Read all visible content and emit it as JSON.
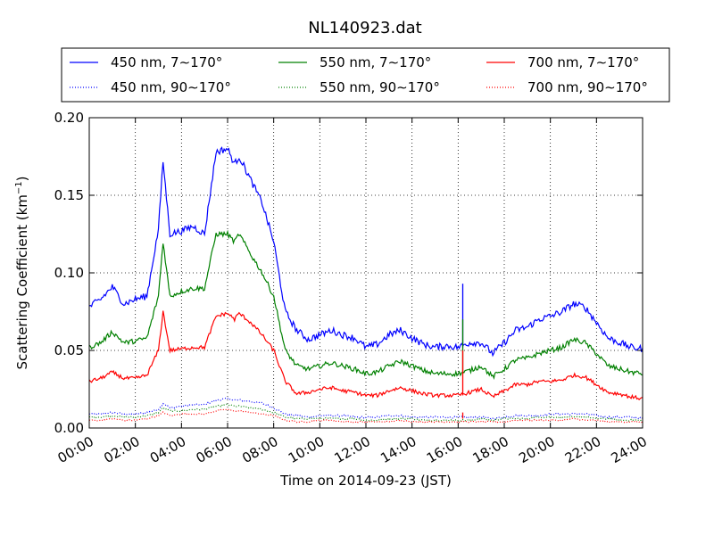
{
  "chart_data": {
    "type": "line",
    "title": "NL140923.dat",
    "xlabel": "Time on 2014-09-23 (JST)",
    "ylabel": "Scattering Coefficient (km",
    "ylabel_sup": "−1",
    "ylabel_end": ")",
    "xlim_hours": [
      0,
      24
    ],
    "ylim": [
      0,
      0.2
    ],
    "x_ticks": [
      "00:00",
      "02:00",
      "04:00",
      "06:00",
      "08:00",
      "10:00",
      "12:00",
      "14:00",
      "16:00",
      "18:00",
      "20:00",
      "22:00",
      "24:00"
    ],
    "y_ticks": [
      "0.00",
      "0.05",
      "0.10",
      "0.15",
      "0.20"
    ],
    "grid": true,
    "legend_placement": "top",
    "x_hours": [
      0,
      0.5,
      1,
      1.5,
      2,
      2.5,
      3,
      3.2,
      3.5,
      4,
      4.5,
      5,
      5.5,
      6,
      6.3,
      6.5,
      7,
      7.5,
      8,
      8.5,
      9,
      9.5,
      10,
      10.5,
      11,
      11.5,
      12,
      12.5,
      13,
      13.5,
      14,
      14.5,
      15,
      15.5,
      16,
      16.5,
      17,
      17.5,
      18,
      18.5,
      19,
      19.5,
      20,
      20.5,
      21,
      21.5,
      22,
      22.5,
      23,
      23.5,
      24
    ],
    "series": [
      {
        "name": "450 nm, 7∼170°",
        "color": "#0000ff",
        "style": "solid",
        "values": [
          0.078,
          0.083,
          0.091,
          0.08,
          0.083,
          0.085,
          0.128,
          0.172,
          0.125,
          0.127,
          0.13,
          0.125,
          0.178,
          0.18,
          0.17,
          0.175,
          0.16,
          0.145,
          0.12,
          0.075,
          0.063,
          0.057,
          0.06,
          0.063,
          0.06,
          0.058,
          0.052,
          0.054,
          0.06,
          0.063,
          0.058,
          0.054,
          0.052,
          0.053,
          0.052,
          0.055,
          0.055,
          0.048,
          0.055,
          0.063,
          0.065,
          0.07,
          0.072,
          0.075,
          0.08,
          0.078,
          0.068,
          0.058,
          0.055,
          0.052,
          0.051
        ]
      },
      {
        "name": "550 nm, 7∼170°",
        "color": "#008000",
        "style": "solid",
        "values": [
          0.052,
          0.055,
          0.062,
          0.055,
          0.056,
          0.058,
          0.085,
          0.12,
          0.085,
          0.088,
          0.09,
          0.09,
          0.125,
          0.125,
          0.12,
          0.125,
          0.112,
          0.1,
          0.085,
          0.05,
          0.04,
          0.038,
          0.04,
          0.042,
          0.04,
          0.038,
          0.035,
          0.036,
          0.04,
          0.043,
          0.04,
          0.037,
          0.035,
          0.035,
          0.035,
          0.037,
          0.04,
          0.033,
          0.038,
          0.044,
          0.045,
          0.048,
          0.05,
          0.052,
          0.057,
          0.055,
          0.048,
          0.04,
          0.038,
          0.036,
          0.035
        ]
      },
      {
        "name": "700 nm, 7∼170°",
        "color": "#ff0000",
        "style": "solid",
        "values": [
          0.03,
          0.032,
          0.036,
          0.032,
          0.032,
          0.034,
          0.05,
          0.075,
          0.05,
          0.051,
          0.052,
          0.052,
          0.072,
          0.074,
          0.07,
          0.074,
          0.068,
          0.06,
          0.05,
          0.03,
          0.022,
          0.023,
          0.025,
          0.026,
          0.024,
          0.023,
          0.021,
          0.021,
          0.024,
          0.026,
          0.024,
          0.022,
          0.021,
          0.021,
          0.021,
          0.023,
          0.025,
          0.02,
          0.024,
          0.028,
          0.028,
          0.03,
          0.03,
          0.031,
          0.034,
          0.033,
          0.028,
          0.023,
          0.022,
          0.02,
          0.019
        ]
      },
      {
        "name": "450 nm, 90∼170°",
        "color": "#0000ff",
        "style": "dotted",
        "values": [
          0.009,
          0.009,
          0.01,
          0.009,
          0.009,
          0.01,
          0.012,
          0.016,
          0.013,
          0.014,
          0.015,
          0.015,
          0.018,
          0.019,
          0.018,
          0.018,
          0.017,
          0.016,
          0.013,
          0.009,
          0.008,
          0.007,
          0.008,
          0.008,
          0.008,
          0.007,
          0.007,
          0.007,
          0.008,
          0.008,
          0.007,
          0.007,
          0.007,
          0.007,
          0.007,
          0.007,
          0.007,
          0.006,
          0.007,
          0.008,
          0.008,
          0.008,
          0.009,
          0.009,
          0.009,
          0.009,
          0.008,
          0.007,
          0.007,
          0.007,
          0.006
        ]
      },
      {
        "name": "550 nm, 90∼170°",
        "color": "#008000",
        "style": "dotted",
        "values": [
          0.007,
          0.007,
          0.008,
          0.007,
          0.007,
          0.008,
          0.01,
          0.013,
          0.011,
          0.011,
          0.012,
          0.012,
          0.014,
          0.015,
          0.014,
          0.014,
          0.013,
          0.012,
          0.01,
          0.007,
          0.006,
          0.006,
          0.006,
          0.006,
          0.006,
          0.006,
          0.005,
          0.005,
          0.006,
          0.006,
          0.006,
          0.005,
          0.005,
          0.005,
          0.005,
          0.005,
          0.006,
          0.005,
          0.006,
          0.006,
          0.006,
          0.007,
          0.007,
          0.007,
          0.007,
          0.007,
          0.006,
          0.006,
          0.005,
          0.005,
          0.005
        ]
      },
      {
        "name": "700 nm, 90∼170°",
        "color": "#ff0000",
        "style": "dotted",
        "values": [
          0.005,
          0.005,
          0.006,
          0.005,
          0.005,
          0.006,
          0.008,
          0.01,
          0.008,
          0.009,
          0.009,
          0.009,
          0.011,
          0.012,
          0.011,
          0.011,
          0.01,
          0.009,
          0.008,
          0.005,
          0.004,
          0.004,
          0.005,
          0.005,
          0.004,
          0.004,
          0.004,
          0.004,
          0.004,
          0.005,
          0.004,
          0.004,
          0.004,
          0.004,
          0.004,
          0.004,
          0.004,
          0.004,
          0.004,
          0.005,
          0.005,
          0.005,
          0.005,
          0.005,
          0.006,
          0.005,
          0.005,
          0.004,
          0.004,
          0.004,
          0.004
        ]
      }
    ],
    "spike_hour": 16.2,
    "spike_values": [
      0.093,
      0.07,
      0.05,
      0.01
    ]
  }
}
